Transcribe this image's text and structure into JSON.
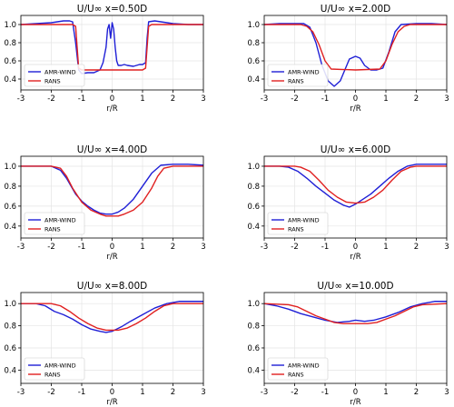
{
  "chart_data": [
    {
      "type": "line",
      "title": "U/U∞  x=0.50D",
      "xlabel": "r/R",
      "ylabel": "",
      "xlim": [
        -3,
        3
      ],
      "ylim": [
        0.28,
        1.1
      ],
      "xticks": [
        -3,
        -2,
        -1,
        0,
        1,
        2,
        3
      ],
      "yticks": [
        0.4,
        0.6,
        0.8,
        1.0
      ],
      "grid": true,
      "legend_position": "lower-left",
      "series": [
        {
          "name": "AMR-WIND",
          "color": "#1f1fd6",
          "x": [
            -3,
            -2.5,
            -2,
            -1.6,
            -1.4,
            -1.3,
            -1.2,
            -1.1,
            -1.0,
            -0.8,
            -0.6,
            -0.4,
            -0.3,
            -0.2,
            -0.15,
            -0.1,
            -0.05,
            0,
            0.05,
            0.1,
            0.15,
            0.2,
            0.3,
            0.4,
            0.5,
            0.7,
            0.9,
            1.0,
            1.1,
            1.15,
            1.2,
            1.4,
            1.6,
            2,
            2.5,
            3
          ],
          "y": [
            1.0,
            1.01,
            1.02,
            1.04,
            1.04,
            1.03,
            0.8,
            0.5,
            0.46,
            0.47,
            0.47,
            0.5,
            0.58,
            0.75,
            0.95,
            1.0,
            0.85,
            1.02,
            0.95,
            0.75,
            0.6,
            0.55,
            0.55,
            0.56,
            0.55,
            0.54,
            0.56,
            0.56,
            0.58,
            0.85,
            1.03,
            1.04,
            1.03,
            1.01,
            1.0,
            1.0
          ]
        },
        {
          "name": "RANS",
          "color": "#e02020",
          "x": [
            -3,
            -1.5,
            -1.3,
            -1.2,
            -1.15,
            -1.1,
            -1.0,
            0,
            1.0,
            1.1,
            1.15,
            1.2,
            1.3,
            1.5,
            3
          ],
          "y": [
            1.0,
            1.0,
            1.0,
            0.98,
            0.75,
            0.52,
            0.5,
            0.5,
            0.5,
            0.52,
            0.75,
            0.98,
            1.0,
            1.0,
            1.0
          ]
        }
      ]
    },
    {
      "type": "line",
      "title": "U/U∞  x=2.00D",
      "xlabel": "r/R",
      "ylabel": "",
      "xlim": [
        -3,
        3
      ],
      "ylim": [
        0.28,
        1.1
      ],
      "xticks": [
        -3,
        -2,
        -1,
        0,
        1,
        2,
        3
      ],
      "yticks": [
        0.4,
        0.6,
        0.8,
        1.0
      ],
      "grid": true,
      "legend_position": "lower-left",
      "series": [
        {
          "name": "AMR-WIND",
          "color": "#1f1fd6",
          "x": [
            -3,
            -2.5,
            -2,
            -1.7,
            -1.5,
            -1.3,
            -1.1,
            -0.9,
            -0.7,
            -0.5,
            -0.35,
            -0.2,
            0,
            0.15,
            0.3,
            0.5,
            0.7,
            0.9,
            1.1,
            1.3,
            1.5,
            2,
            2.5,
            3
          ],
          "y": [
            1.0,
            1.01,
            1.01,
            1.01,
            0.97,
            0.8,
            0.55,
            0.38,
            0.32,
            0.38,
            0.5,
            0.62,
            0.65,
            0.63,
            0.55,
            0.5,
            0.5,
            0.52,
            0.7,
            0.92,
            1.0,
            1.01,
            1.01,
            1.0
          ]
        },
        {
          "name": "RANS",
          "color": "#e02020",
          "x": [
            -3,
            -1.8,
            -1.6,
            -1.4,
            -1.2,
            -1.0,
            -0.8,
            0,
            0.8,
            1.0,
            1.2,
            1.4,
            1.6,
            1.8,
            3
          ],
          "y": [
            1.0,
            1.0,
            0.98,
            0.92,
            0.78,
            0.6,
            0.51,
            0.5,
            0.51,
            0.6,
            0.78,
            0.92,
            0.98,
            1.0,
            1.0
          ]
        }
      ]
    },
    {
      "type": "line",
      "title": "U/U∞  x=4.00D",
      "xlabel": "r/R",
      "ylabel": "",
      "xlim": [
        -3,
        3
      ],
      "ylim": [
        0.28,
        1.1
      ],
      "xticks": [
        -3,
        -2,
        -1,
        0,
        1,
        2,
        3
      ],
      "yticks": [
        0.4,
        0.6,
        0.8,
        1.0
      ],
      "grid": true,
      "legend_position": "lower-left",
      "series": [
        {
          "name": "AMR-WIND",
          "color": "#1f1fd6",
          "x": [
            -3,
            -2.5,
            -2,
            -1.7,
            -1.5,
            -1.2,
            -1.0,
            -0.8,
            -0.6,
            -0.4,
            -0.2,
            0,
            0.2,
            0.4,
            0.7,
            1.0,
            1.3,
            1.6,
            2,
            2.5,
            3
          ],
          "y": [
            1.0,
            1.0,
            1.0,
            0.96,
            0.88,
            0.72,
            0.65,
            0.6,
            0.56,
            0.53,
            0.52,
            0.52,
            0.54,
            0.58,
            0.67,
            0.8,
            0.93,
            1.01,
            1.02,
            1.02,
            1.01
          ]
        },
        {
          "name": "RANS",
          "color": "#e02020",
          "x": [
            -3,
            -2,
            -1.7,
            -1.5,
            -1.3,
            -1.0,
            -0.7,
            -0.4,
            -0.2,
            0,
            0.2,
            0.4,
            0.7,
            1.0,
            1.3,
            1.5,
            1.7,
            2,
            3
          ],
          "y": [
            1.0,
            1.0,
            0.98,
            0.9,
            0.78,
            0.64,
            0.56,
            0.52,
            0.5,
            0.5,
            0.5,
            0.52,
            0.56,
            0.64,
            0.78,
            0.9,
            0.98,
            1.0,
            1.0
          ]
        }
      ]
    },
    {
      "type": "line",
      "title": "U/U∞  x=6.00D",
      "xlabel": "r/R",
      "ylabel": "",
      "xlim": [
        -3,
        3
      ],
      "ylim": [
        0.28,
        1.1
      ],
      "xticks": [
        -3,
        -2,
        -1,
        0,
        1,
        2,
        3
      ],
      "yticks": [
        0.4,
        0.6,
        0.8,
        1.0
      ],
      "grid": true,
      "legend_position": "lower-left",
      "series": [
        {
          "name": "AMR-WIND",
          "color": "#1f1fd6",
          "x": [
            -3,
            -2.5,
            -2.2,
            -1.9,
            -1.6,
            -1.3,
            -1.0,
            -0.7,
            -0.4,
            -0.2,
            0,
            0.2,
            0.5,
            0.8,
            1.1,
            1.4,
            1.7,
            2,
            2.5,
            3
          ],
          "y": [
            1.0,
            1.0,
            0.99,
            0.95,
            0.88,
            0.8,
            0.73,
            0.66,
            0.61,
            0.59,
            0.62,
            0.66,
            0.72,
            0.8,
            0.88,
            0.95,
            1.0,
            1.02,
            1.02,
            1.02
          ]
        },
        {
          "name": "RANS",
          "color": "#e02020",
          "x": [
            -3,
            -2,
            -1.8,
            -1.5,
            -1.2,
            -0.9,
            -0.6,
            -0.3,
            0,
            0.3,
            0.6,
            0.9,
            1.2,
            1.5,
            1.8,
            2,
            3
          ],
          "y": [
            1.0,
            1.0,
            0.99,
            0.95,
            0.86,
            0.76,
            0.69,
            0.64,
            0.63,
            0.64,
            0.69,
            0.76,
            0.86,
            0.95,
            0.99,
            1.0,
            1.0
          ]
        }
      ]
    },
    {
      "type": "line",
      "title": "U/U∞  x=8.00D",
      "xlabel": "r/R",
      "ylabel": "",
      "xlim": [
        -3,
        3
      ],
      "ylim": [
        0.28,
        1.1
      ],
      "xticks": [
        -3,
        -2,
        -1,
        0,
        1,
        2,
        3
      ],
      "yticks": [
        0.4,
        0.6,
        0.8,
        1.0
      ],
      "grid": true,
      "legend_position": "lower-left",
      "series": [
        {
          "name": "AMR-WIND",
          "color": "#1f1fd6",
          "x": [
            -3,
            -2.5,
            -2.2,
            -1.9,
            -1.6,
            -1.3,
            -1.0,
            -0.7,
            -0.4,
            -0.2,
            0,
            0.3,
            0.6,
            1.0,
            1.4,
            1.8,
            2.2,
            2.6,
            3
          ],
          "y": [
            1.0,
            1.0,
            0.98,
            0.93,
            0.9,
            0.86,
            0.81,
            0.77,
            0.75,
            0.74,
            0.75,
            0.79,
            0.84,
            0.9,
            0.96,
            1.0,
            1.02,
            1.02,
            1.02
          ]
        },
        {
          "name": "RANS",
          "color": "#e02020",
          "x": [
            -3,
            -2,
            -1.7,
            -1.4,
            -1.1,
            -0.8,
            -0.5,
            -0.2,
            0,
            0.2,
            0.5,
            0.8,
            1.1,
            1.4,
            1.7,
            2,
            3
          ],
          "y": [
            1.0,
            1.0,
            0.98,
            0.93,
            0.87,
            0.82,
            0.78,
            0.76,
            0.76,
            0.76,
            0.78,
            0.82,
            0.87,
            0.93,
            0.98,
            1.0,
            1.0
          ]
        }
      ]
    },
    {
      "type": "line",
      "title": "U/U∞  x=10.00D",
      "xlabel": "r/R",
      "ylabel": "",
      "xlim": [
        -3,
        3
      ],
      "ylim": [
        0.28,
        1.1
      ],
      "xticks": [
        -3,
        -2,
        -1,
        0,
        1,
        2,
        3
      ],
      "yticks": [
        0.4,
        0.6,
        0.8,
        1.0
      ],
      "grid": true,
      "legend_position": "lower-left",
      "series": [
        {
          "name": "AMR-WIND",
          "color": "#1f1fd6",
          "x": [
            -3,
            -2.6,
            -2.2,
            -1.8,
            -1.4,
            -1.0,
            -0.6,
            -0.2,
            0,
            0.3,
            0.6,
            1.0,
            1.4,
            1.8,
            2.2,
            2.6,
            3
          ],
          "y": [
            1.0,
            0.98,
            0.95,
            0.91,
            0.88,
            0.85,
            0.83,
            0.84,
            0.85,
            0.84,
            0.85,
            0.88,
            0.92,
            0.97,
            1.0,
            1.02,
            1.02
          ]
        },
        {
          "name": "RANS",
          "color": "#e02020",
          "x": [
            -3,
            -2.2,
            -1.9,
            -1.6,
            -1.3,
            -1.0,
            -0.7,
            -0.4,
            0,
            0.4,
            0.7,
            1.0,
            1.3,
            1.6,
            1.9,
            2.2,
            3
          ],
          "y": [
            1.0,
            0.99,
            0.97,
            0.93,
            0.89,
            0.86,
            0.83,
            0.82,
            0.82,
            0.82,
            0.83,
            0.86,
            0.89,
            0.93,
            0.97,
            0.99,
            1.0
          ]
        }
      ]
    }
  ]
}
